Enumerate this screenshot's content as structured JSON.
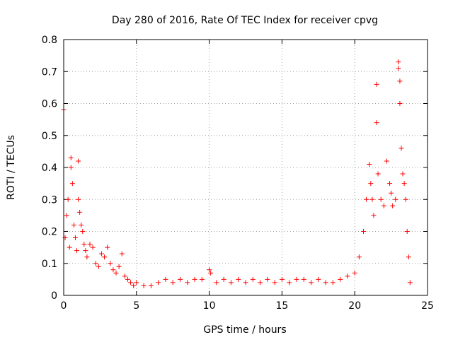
{
  "chart_data": {
    "type": "scatter",
    "title": "Day 280 of 2016, Rate Of TEC Index for receiver cpvg",
    "xlabel": "GPS time / hours",
    "ylabel": "ROTI / TECUs",
    "xlim": [
      0,
      25
    ],
    "ylim": [
      0,
      0.8
    ],
    "xticks": [
      0,
      5,
      10,
      15,
      20,
      25
    ],
    "xtick_labels": [
      "0",
      "5",
      "10",
      "15",
      "20",
      "25"
    ],
    "yticks": [
      0,
      0.1,
      0.2,
      0.3,
      0.4,
      0.5,
      0.6,
      0.7,
      0.8
    ],
    "ytick_labels": [
      "0",
      "0.1",
      "0.2",
      "0.3",
      "0.4",
      "0.5",
      "0.6",
      "0.7",
      "0.8"
    ],
    "grid": true,
    "legend": "none",
    "marker": "+",
    "series": [
      {
        "color": "#ff0000",
        "x": [
          0.0,
          0.1,
          0.2,
          0.3,
          0.4,
          0.5,
          0.5,
          0.6,
          0.7,
          0.8,
          0.9,
          1.0,
          1.0,
          1.1,
          1.2,
          1.3,
          1.4,
          1.5,
          1.6,
          1.8,
          2.0,
          2.2,
          2.4,
          2.6,
          2.8,
          3.0,
          3.2,
          3.4,
          3.6,
          3.8,
          4.0,
          4.2,
          4.4,
          4.6,
          4.8,
          5.0,
          5.5,
          6.0,
          6.5,
          7.0,
          7.5,
          8.0,
          8.5,
          9.0,
          9.5,
          10.0,
          10.1,
          10.5,
          11.0,
          11.5,
          12.0,
          12.5,
          13.0,
          13.5,
          14.0,
          14.5,
          15.0,
          15.5,
          16.0,
          16.5,
          17.0,
          17.5,
          18.0,
          18.5,
          19.0,
          19.5,
          20.0,
          20.3,
          20.6,
          20.8,
          21.0,
          21.1,
          21.2,
          21.3,
          21.5,
          21.5,
          21.6,
          21.8,
          22.0,
          22.2,
          22.4,
          22.5,
          22.6,
          22.8,
          23.0,
          23.0,
          23.1,
          23.1,
          23.2,
          23.3,
          23.4,
          23.5,
          23.6,
          23.7,
          23.8
        ],
        "y": [
          0.58,
          0.18,
          0.25,
          0.3,
          0.15,
          0.43,
          0.4,
          0.35,
          0.22,
          0.18,
          0.14,
          0.42,
          0.3,
          0.26,
          0.22,
          0.2,
          0.16,
          0.14,
          0.12,
          0.16,
          0.15,
          0.1,
          0.09,
          0.13,
          0.12,
          0.15,
          0.1,
          0.08,
          0.07,
          0.09,
          0.13,
          0.06,
          0.05,
          0.04,
          0.03,
          0.04,
          0.03,
          0.03,
          0.04,
          0.05,
          0.04,
          0.05,
          0.04,
          0.05,
          0.05,
          0.08,
          0.07,
          0.04,
          0.05,
          0.04,
          0.05,
          0.04,
          0.05,
          0.04,
          0.05,
          0.04,
          0.05,
          0.04,
          0.05,
          0.05,
          0.04,
          0.05,
          0.04,
          0.04,
          0.05,
          0.06,
          0.07,
          0.12,
          0.2,
          0.3,
          0.41,
          0.35,
          0.3,
          0.25,
          0.66,
          0.54,
          0.38,
          0.3,
          0.28,
          0.42,
          0.35,
          0.32,
          0.28,
          0.3,
          0.73,
          0.71,
          0.67,
          0.6,
          0.46,
          0.38,
          0.35,
          0.3,
          0.2,
          0.12,
          0.04
        ]
      }
    ]
  }
}
